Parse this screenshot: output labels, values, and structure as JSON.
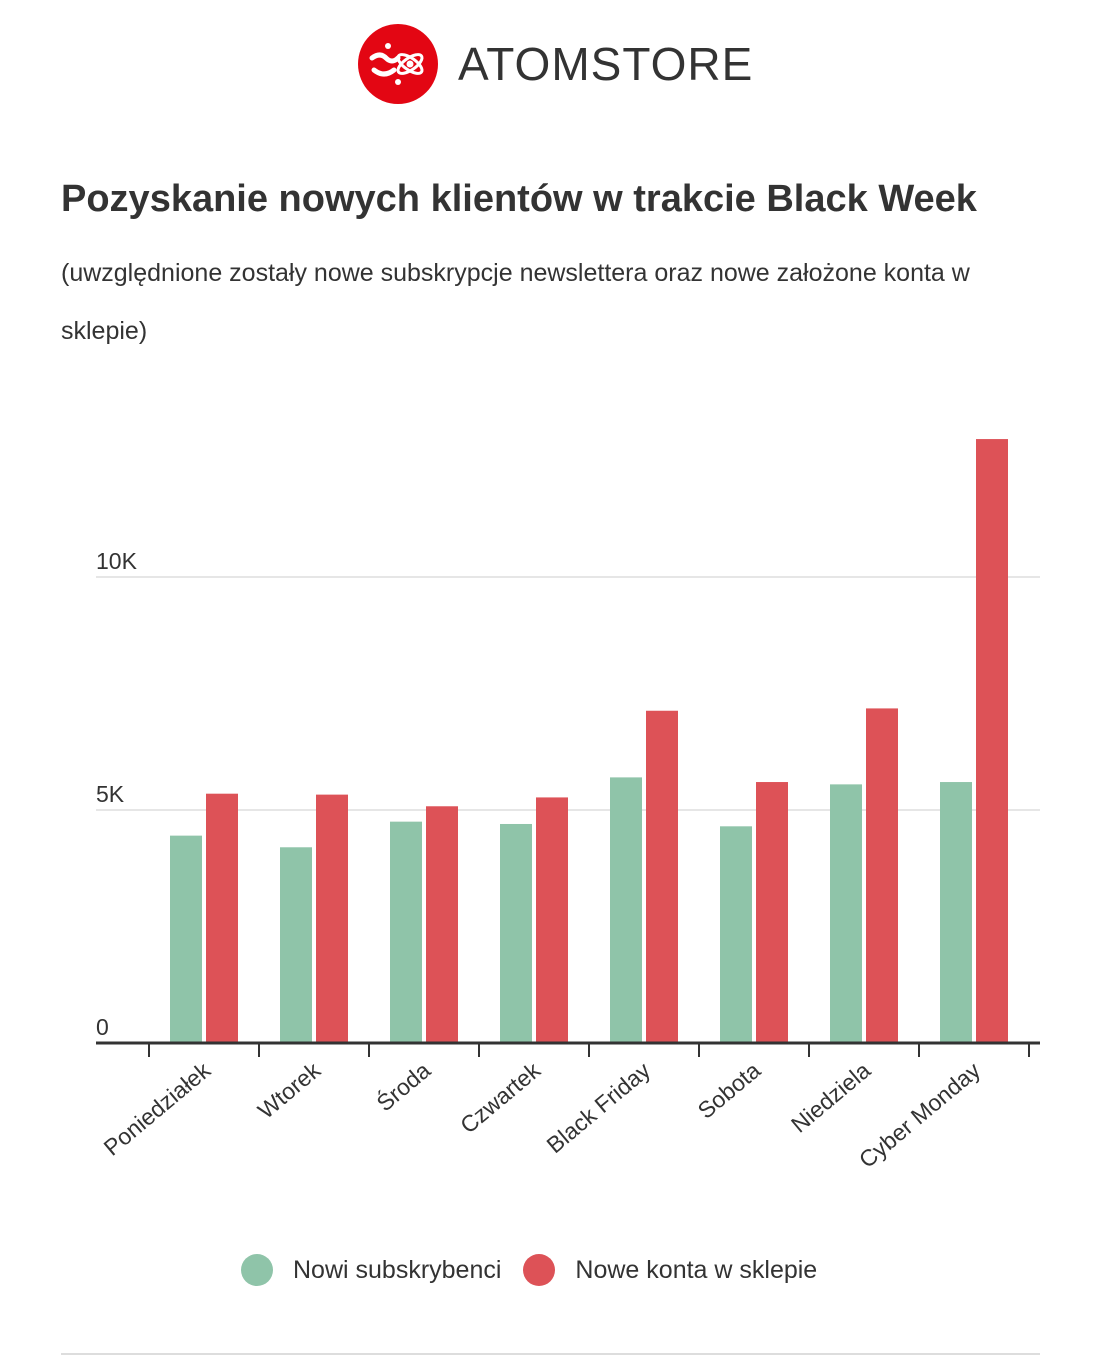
{
  "brand": {
    "name": "ATOMSTORE",
    "mark_color": "#e30613"
  },
  "title": "Pozyskanie nowych klientów w trakcie Black Week",
  "subtitle": "(uwzględnione zostały nowe subskrypcje newslettera oraz nowe założone konta w sklepie)",
  "chart_data": {
    "type": "bar",
    "title": "",
    "xlabel": "",
    "ylabel": "",
    "categories": [
      "Poniedziałek",
      "Wtorek",
      "Środa",
      "Czwartek",
      "Black Friday",
      "Sobota",
      "Niedziela",
      "Cyber Monday"
    ],
    "series": [
      {
        "name": "Nowi subskrybenci",
        "color": "#8fc4a9",
        "values": [
          4450,
          4200,
          4750,
          4700,
          5700,
          4650,
          5550,
          5600
        ]
      },
      {
        "name": "Nowe konta w sklepie",
        "color": "#dd5257",
        "values": [
          5350,
          5330,
          5080,
          5270,
          7130,
          5600,
          7180,
          12960
        ]
      }
    ],
    "ylim": [
      0,
      13500
    ],
    "yticks": [
      0,
      5000,
      10000
    ],
    "ytick_labels": [
      "0",
      "5K",
      "10K"
    ],
    "grid": true,
    "legend": "bottom-center"
  },
  "legend": [
    {
      "label": "Nowi subskrybenci",
      "color": "#8fc4a9"
    },
    {
      "label": "Nowe konta w sklepie",
      "color": "#dd5257"
    }
  ]
}
